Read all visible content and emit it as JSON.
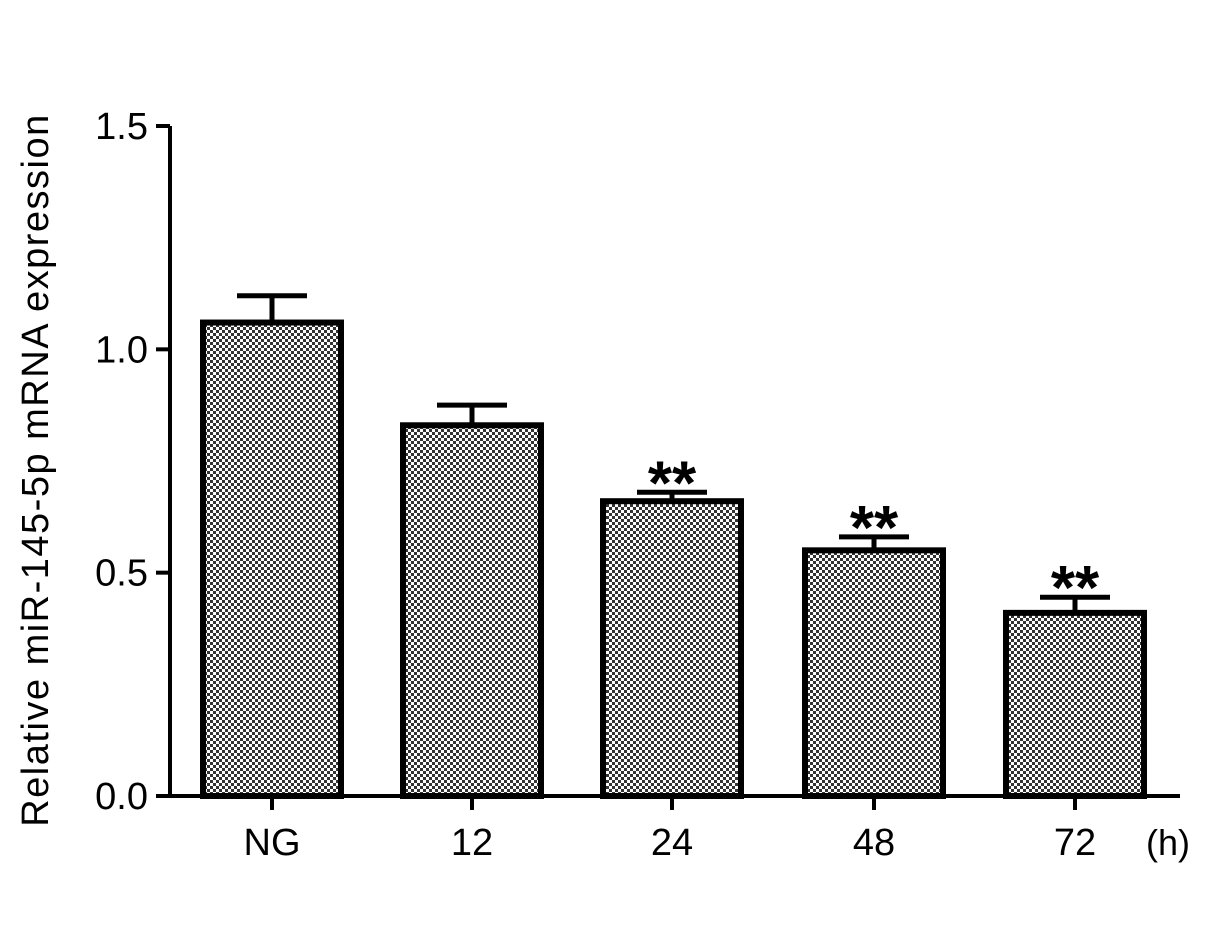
{
  "chart_data": {
    "type": "bar",
    "categories": [
      "NG",
      "12",
      "24",
      "48",
      "72"
    ],
    "values": [
      1.06,
      0.83,
      0.66,
      0.55,
      0.41
    ],
    "errors": [
      0.06,
      0.045,
      0.02,
      0.03,
      0.035
    ],
    "annotations": [
      "",
      "",
      "**",
      "**",
      "**"
    ],
    "xunit": "(h)",
    "ylabel": "Relative  miR-145-5p mRNA expression",
    "ylim": [
      0,
      1.5
    ],
    "yticks": [
      0,
      0.5,
      1.0,
      1.5
    ],
    "ytick_labels": [
      "0.0",
      "0.5",
      "1.0",
      "1.5"
    ],
    "grid": false,
    "bar_pattern": "checkerboard",
    "colors": {
      "edge": "#000000",
      "fill_dark": "#000000",
      "fill_light": "#ffffff"
    }
  }
}
